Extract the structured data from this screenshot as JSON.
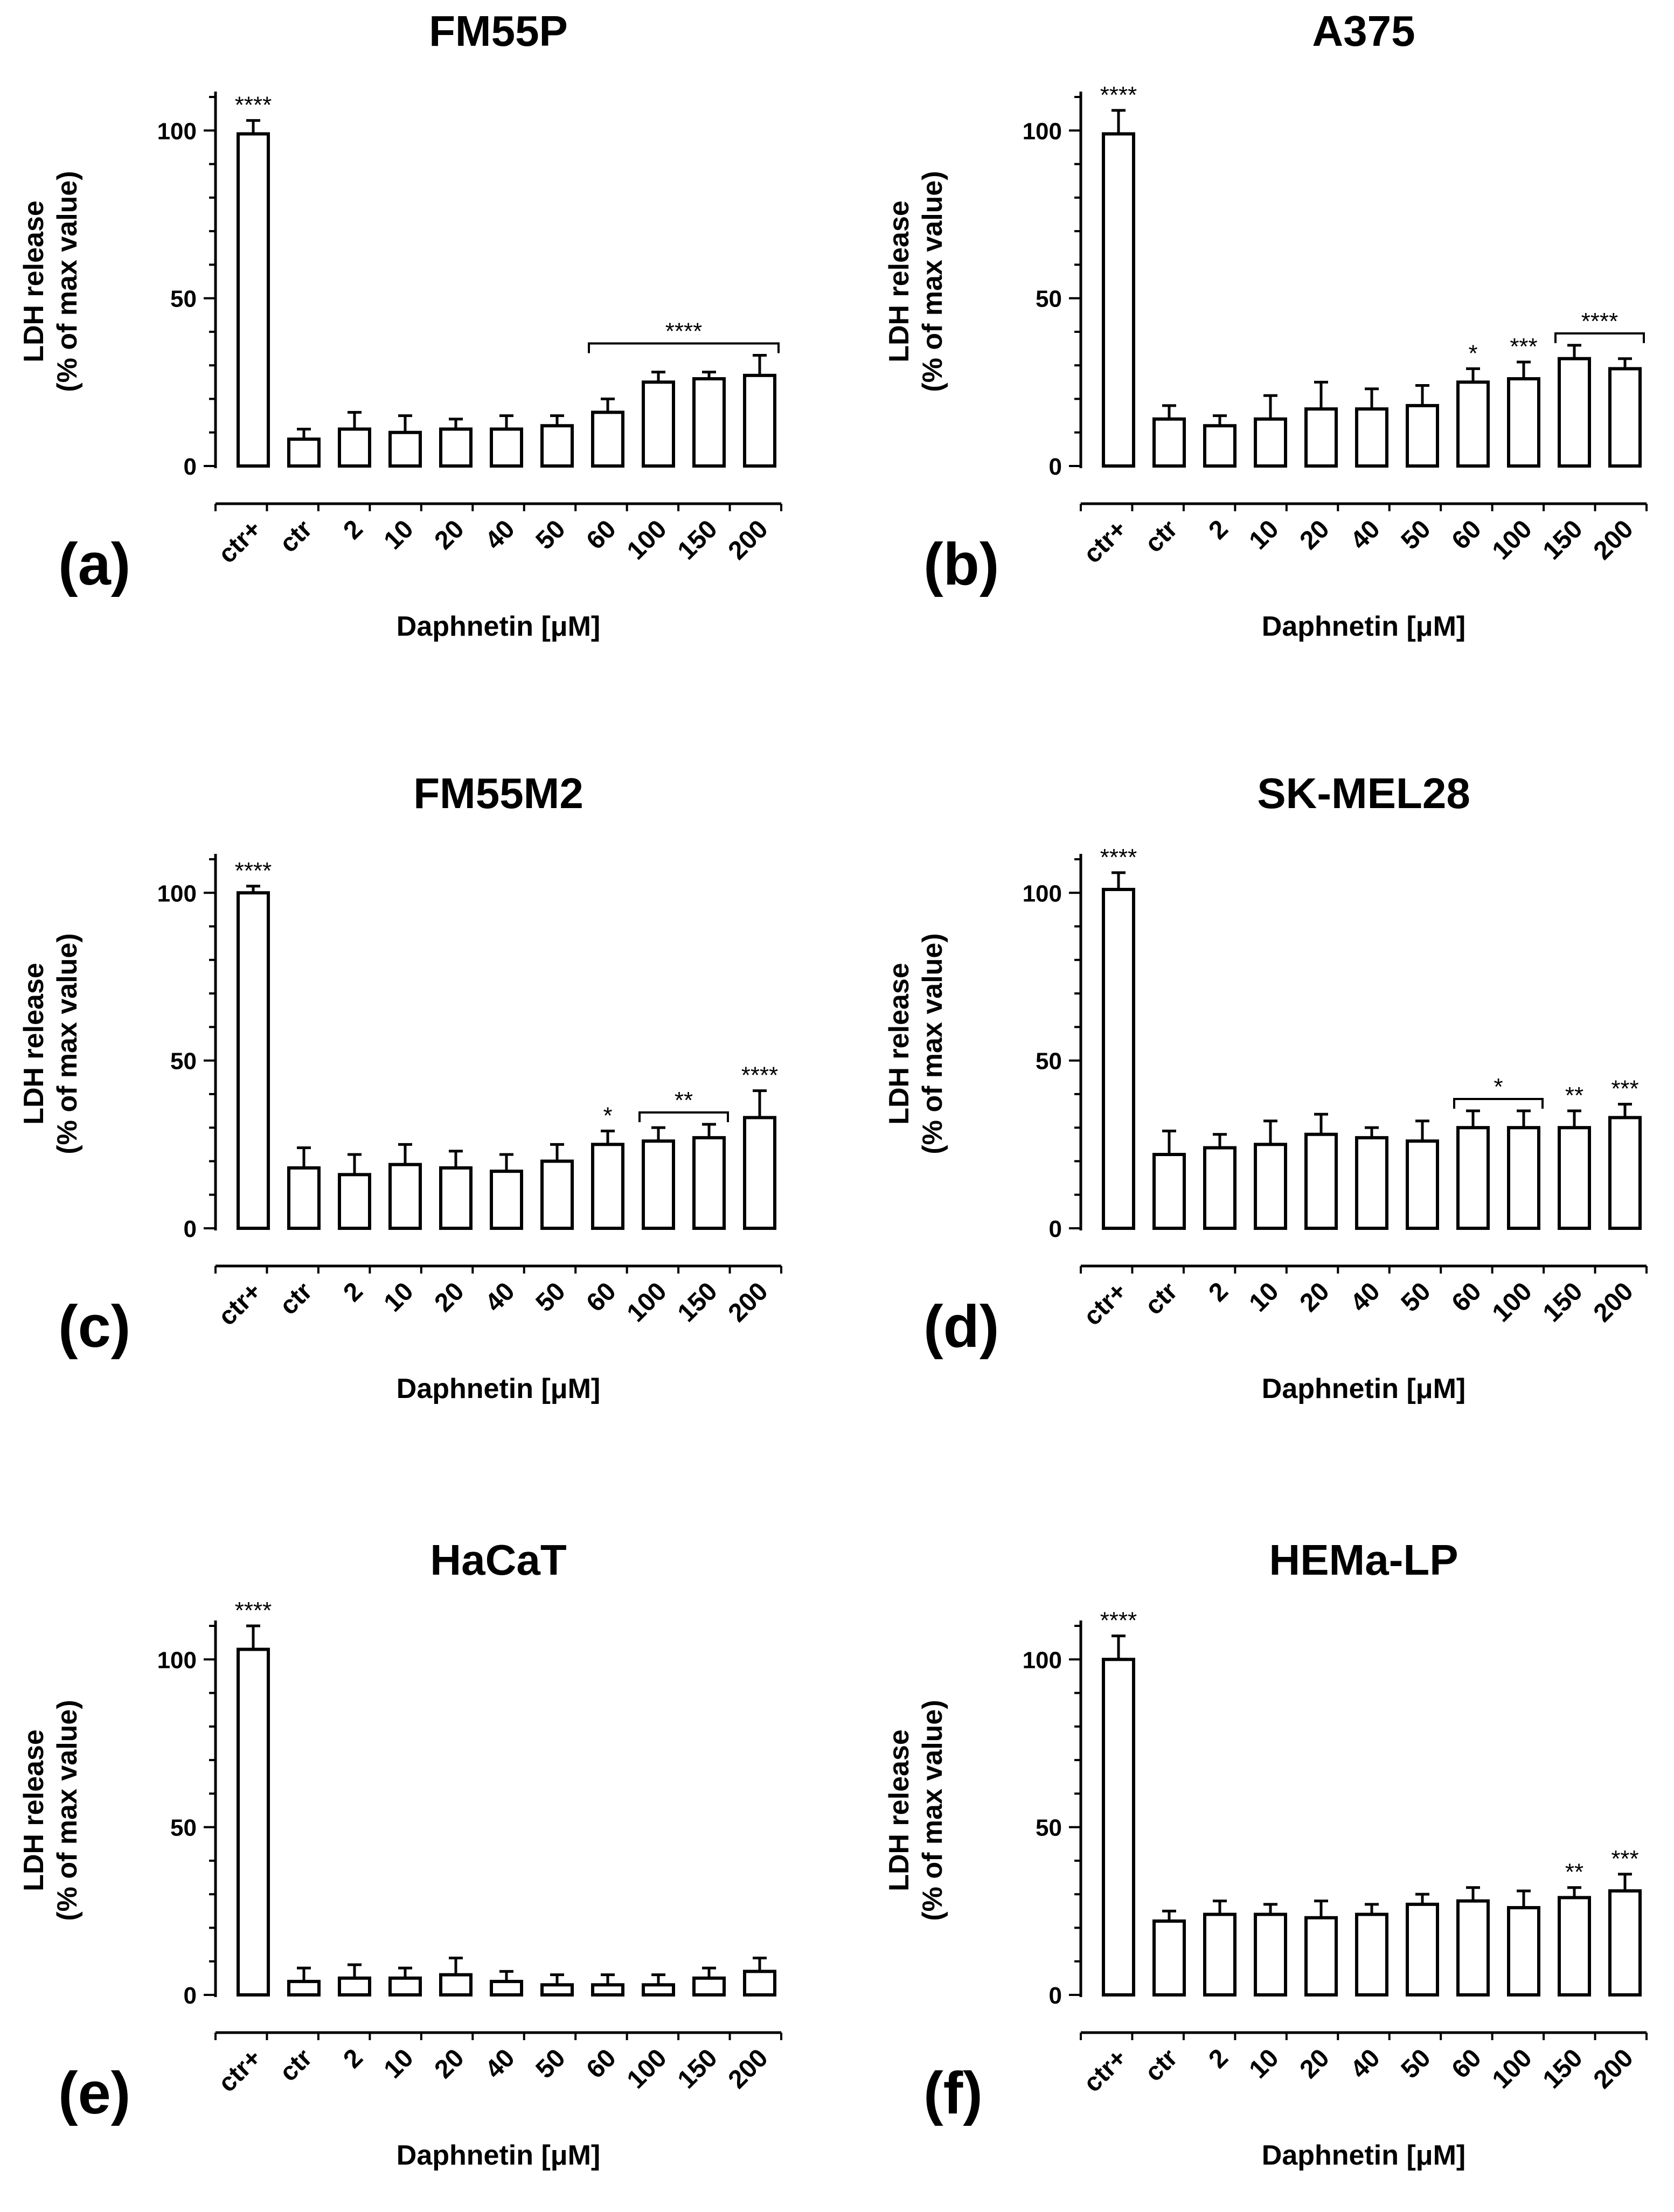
{
  "chart_data": [
    {
      "type": "bar",
      "panel_label": "(a)",
      "title": "FM55P",
      "ylabel_line1": "LDH release",
      "ylabel_line2": "(% of max value)",
      "xlabel": "Daphnetin [μM]",
      "categories": [
        "ctr+",
        "ctr",
        "2",
        "10",
        "20",
        "40",
        "50",
        "60",
        "100",
        "150",
        "200"
      ],
      "values": [
        99,
        8,
        11,
        10,
        11,
        11,
        12,
        16,
        25,
        26,
        27
      ],
      "errors": [
        4,
        3,
        5,
        5,
        3,
        4,
        3,
        4,
        3,
        2,
        6
      ],
      "ylim": [
        0,
        110
      ],
      "yticks": [
        "0",
        "50",
        "100"
      ],
      "significance": [
        {
          "index": 0,
          "label": "****"
        }
      ],
      "brackets": [
        {
          "from": 7,
          "to": 10,
          "label": "****"
        }
      ]
    },
    {
      "type": "bar",
      "panel_label": "(b)",
      "title": "A375",
      "ylabel_line1": "LDH release",
      "ylabel_line2": "(% of max value)",
      "xlabel": "Daphnetin [μM]",
      "categories": [
        "ctr+",
        "ctr",
        "2",
        "10",
        "20",
        "40",
        "50",
        "60",
        "100",
        "150",
        "200"
      ],
      "values": [
        99,
        14,
        12,
        14,
        17,
        17,
        18,
        25,
        26,
        32,
        29
      ],
      "errors": [
        7,
        4,
        3,
        7,
        8,
        6,
        6,
        4,
        5,
        4,
        3
      ],
      "ylim": [
        0,
        110
      ],
      "yticks": [
        "0",
        "50",
        "100"
      ],
      "significance": [
        {
          "index": 0,
          "label": "****"
        },
        {
          "index": 7,
          "label": "*"
        },
        {
          "index": 8,
          "label": "***"
        }
      ],
      "brackets": [
        {
          "from": 9,
          "to": 10,
          "label": "****"
        }
      ]
    },
    {
      "type": "bar",
      "panel_label": "(c)",
      "title": "FM55M2",
      "ylabel_line1": "LDH release",
      "ylabel_line2": "(% of max value)",
      "xlabel": "Daphnetin [μM]",
      "categories": [
        "ctr+",
        "ctr",
        "2",
        "10",
        "20",
        "40",
        "50",
        "60",
        "100",
        "150",
        "200"
      ],
      "values": [
        100,
        18,
        16,
        19,
        18,
        17,
        20,
        25,
        26,
        27,
        33
      ],
      "errors": [
        2,
        6,
        6,
        6,
        5,
        5,
        5,
        4,
        4,
        4,
        8
      ],
      "ylim": [
        0,
        110
      ],
      "yticks": [
        "0",
        "50",
        "100"
      ],
      "significance": [
        {
          "index": 0,
          "label": "****"
        },
        {
          "index": 7,
          "label": "*"
        },
        {
          "index": 10,
          "label": "****"
        }
      ],
      "brackets": [
        {
          "from": 8,
          "to": 9,
          "label": "**"
        }
      ]
    },
    {
      "type": "bar",
      "panel_label": "(d)",
      "title": "SK-MEL28",
      "ylabel_line1": "LDH release",
      "ylabel_line2": "(% of max value)",
      "xlabel": "Daphnetin [μM]",
      "categories": [
        "ctr+",
        "ctr",
        "2",
        "10",
        "20",
        "40",
        "50",
        "60",
        "100",
        "150",
        "200"
      ],
      "values": [
        101,
        22,
        24,
        25,
        28,
        27,
        26,
        30,
        30,
        30,
        33
      ],
      "errors": [
        5,
        7,
        4,
        7,
        6,
        3,
        6,
        5,
        5,
        5,
        4
      ],
      "ylim": [
        0,
        110
      ],
      "yticks": [
        "0",
        "50",
        "100"
      ],
      "significance": [
        {
          "index": 0,
          "label": "****"
        },
        {
          "index": 9,
          "label": "**"
        },
        {
          "index": 10,
          "label": "***"
        }
      ],
      "brackets": [
        {
          "from": 7,
          "to": 8,
          "label": "*"
        }
      ]
    },
    {
      "type": "bar",
      "panel_label": "(e)",
      "title": "HaCaT",
      "ylabel_line1": "LDH release",
      "ylabel_line2": "(% of max value)",
      "xlabel": "Daphnetin [μM]",
      "categories": [
        "ctr+",
        "ctr",
        "2",
        "10",
        "20",
        "40",
        "50",
        "60",
        "100",
        "150",
        "200"
      ],
      "values": [
        103,
        4,
        5,
        5,
        6,
        4,
        3,
        3,
        3,
        5,
        7
      ],
      "errors": [
        7,
        4,
        4,
        3,
        5,
        3,
        3,
        3,
        3,
        3,
        4
      ],
      "ylim": [
        0,
        110
      ],
      "yticks": [
        "0",
        "50",
        "100"
      ],
      "significance": [
        {
          "index": 0,
          "label": "****"
        }
      ],
      "brackets": []
    },
    {
      "type": "bar",
      "panel_label": "(f)",
      "title": "HEMa-LP",
      "ylabel_line1": "LDH release",
      "ylabel_line2": "(% of max value)",
      "xlabel": "Daphnetin [μM]",
      "categories": [
        "ctr+",
        "ctr",
        "2",
        "10",
        "20",
        "40",
        "50",
        "60",
        "100",
        "150",
        "200"
      ],
      "values": [
        100,
        22,
        24,
        24,
        23,
        24,
        27,
        28,
        26,
        29,
        31
      ],
      "errors": [
        7,
        3,
        4,
        3,
        5,
        3,
        3,
        4,
        5,
        3,
        5
      ],
      "ylim": [
        0,
        110
      ],
      "yticks": [
        "0",
        "50",
        "100"
      ],
      "significance": [
        {
          "index": 0,
          "label": "****"
        },
        {
          "index": 9,
          "label": "**"
        },
        {
          "index": 10,
          "label": "***"
        }
      ],
      "brackets": []
    }
  ]
}
